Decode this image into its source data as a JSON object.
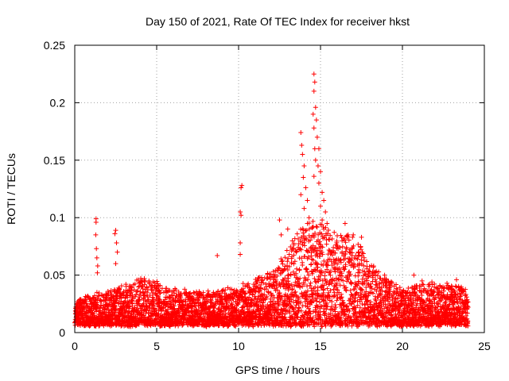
{
  "chart_data": {
    "type": "scatter",
    "title": "Day 150 of 2021, Rate Of TEC Index for receiver hkst",
    "xlabel": "GPS time / hours",
    "ylabel": "ROTI / TECUs",
    "xlim": [
      0,
      25
    ],
    "ylim": [
      0,
      0.25
    ],
    "xticks": [
      0,
      5,
      10,
      15,
      20,
      25
    ],
    "yticks": [
      0,
      0.05,
      0.1,
      0.15,
      0.2,
      0.25
    ],
    "xtick_labels": [
      "0",
      "5",
      "10",
      "15",
      "20",
      "25"
    ],
    "ytick_labels": [
      "0",
      "0.05",
      "0.1",
      "0.15",
      "0.2",
      "0.25"
    ],
    "grid": true,
    "marker": "+",
    "color": "#ff0000",
    "envelope": {
      "description": "approximate upper envelope of the ROTI point cloud (hours, TECUs)",
      "x": [
        0,
        1,
        2,
        3,
        4,
        5,
        6,
        7,
        8,
        9,
        10,
        11,
        12,
        12.5,
        13,
        13.5,
        14,
        14.5,
        15,
        15.5,
        16,
        16.5,
        17,
        17.5,
        18,
        19,
        20,
        21,
        22,
        23,
        24
      ],
      "upper": [
        0.025,
        0.03,
        0.033,
        0.04,
        0.045,
        0.042,
        0.036,
        0.033,
        0.033,
        0.035,
        0.038,
        0.045,
        0.05,
        0.06,
        0.075,
        0.085,
        0.09,
        0.095,
        0.095,
        0.09,
        0.085,
        0.085,
        0.08,
        0.075,
        0.06,
        0.045,
        0.035,
        0.04,
        0.04,
        0.04,
        0.035
      ],
      "lower": 0.005
    },
    "highlights": [
      {
        "x": 1.3,
        "y": 0.099
      },
      {
        "x": 1.3,
        "y": 0.096
      },
      {
        "x": 1.28,
        "y": 0.085
      },
      {
        "x": 1.32,
        "y": 0.073
      },
      {
        "x": 1.35,
        "y": 0.065
      },
      {
        "x": 1.4,
        "y": 0.058
      },
      {
        "x": 1.38,
        "y": 0.052
      },
      {
        "x": 2.5,
        "y": 0.089
      },
      {
        "x": 2.45,
        "y": 0.086
      },
      {
        "x": 2.55,
        "y": 0.078
      },
      {
        "x": 2.6,
        "y": 0.07
      },
      {
        "x": 2.5,
        "y": 0.06
      },
      {
        "x": 8.7,
        "y": 0.067
      },
      {
        "x": 10.2,
        "y": 0.128
      },
      {
        "x": 10.15,
        "y": 0.126
      },
      {
        "x": 10.1,
        "y": 0.105
      },
      {
        "x": 10.15,
        "y": 0.102
      },
      {
        "x": 10.1,
        "y": 0.078
      },
      {
        "x": 10.1,
        "y": 0.068
      },
      {
        "x": 12.5,
        "y": 0.098
      },
      {
        "x": 12.6,
        "y": 0.085
      },
      {
        "x": 13.0,
        "y": 0.09
      },
      {
        "x": 13.8,
        "y": 0.174
      },
      {
        "x": 13.85,
        "y": 0.163
      },
      {
        "x": 13.9,
        "y": 0.155
      },
      {
        "x": 14.0,
        "y": 0.145
      },
      {
        "x": 13.95,
        "y": 0.135
      },
      {
        "x": 14.1,
        "y": 0.126
      },
      {
        "x": 13.8,
        "y": 0.12
      },
      {
        "x": 14.2,
        "y": 0.115
      },
      {
        "x": 14.0,
        "y": 0.108
      },
      {
        "x": 14.3,
        "y": 0.1
      },
      {
        "x": 14.2,
        "y": 0.095
      },
      {
        "x": 14.6,
        "y": 0.225
      },
      {
        "x": 14.65,
        "y": 0.218
      },
      {
        "x": 14.6,
        "y": 0.21
      },
      {
        "x": 14.7,
        "y": 0.196
      },
      {
        "x": 14.55,
        "y": 0.19
      },
      {
        "x": 14.75,
        "y": 0.185
      },
      {
        "x": 14.6,
        "y": 0.178
      },
      {
        "x": 14.8,
        "y": 0.17
      },
      {
        "x": 14.65,
        "y": 0.16
      },
      {
        "x": 14.9,
        "y": 0.16
      },
      {
        "x": 14.7,
        "y": 0.15
      },
      {
        "x": 14.85,
        "y": 0.145
      },
      {
        "x": 15.0,
        "y": 0.14
      },
      {
        "x": 14.6,
        "y": 0.136
      },
      {
        "x": 14.9,
        "y": 0.13
      },
      {
        "x": 15.1,
        "y": 0.122
      },
      {
        "x": 15.2,
        "y": 0.115
      },
      {
        "x": 15.0,
        "y": 0.11
      },
      {
        "x": 15.3,
        "y": 0.105
      },
      {
        "x": 15.1,
        "y": 0.098
      },
      {
        "x": 15.4,
        "y": 0.095
      },
      {
        "x": 15.2,
        "y": 0.09
      },
      {
        "x": 16.5,
        "y": 0.095
      },
      {
        "x": 17.0,
        "y": 0.085
      },
      {
        "x": 17.5,
        "y": 0.083
      },
      {
        "x": 20.7,
        "y": 0.05
      },
      {
        "x": 21.2,
        "y": 0.045
      },
      {
        "x": 21.8,
        "y": 0.044
      },
      {
        "x": 23.3,
        "y": 0.046
      }
    ]
  }
}
